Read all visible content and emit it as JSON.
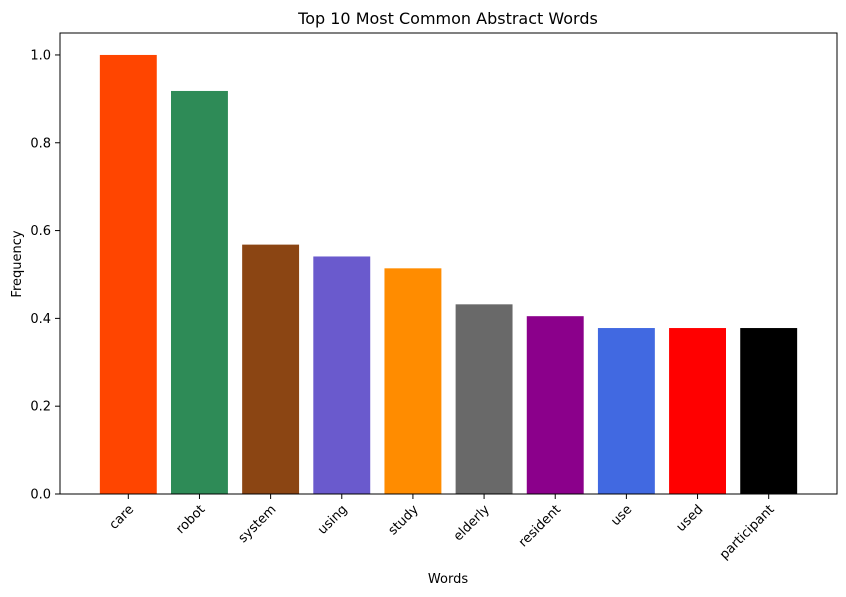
{
  "chart_data": {
    "type": "bar",
    "title": "Top 10 Most Common Abstract Words",
    "xlabel": "Words",
    "ylabel": "Frequency",
    "categories": [
      "care",
      "robot",
      "system",
      "using",
      "study",
      "elderly",
      "resident",
      "use",
      "used",
      "participant"
    ],
    "values": [
      1.0,
      0.918,
      0.568,
      0.541,
      0.514,
      0.432,
      0.405,
      0.378,
      0.378,
      0.378
    ],
    "colors": [
      "#ff4500",
      "#2e8b57",
      "#8b4513",
      "#6a5acd",
      "#ff8c00",
      "#696969",
      "#8b008b",
      "#4169e1",
      "#ff0000",
      "#000000"
    ],
    "ylim": [
      0,
      1.05
    ],
    "yticks": [
      0.0,
      0.2,
      0.4,
      0.6,
      0.8,
      1.0
    ],
    "ytick_labels": [
      "0.0",
      "0.2",
      "0.4",
      "0.6",
      "0.8",
      "1.0"
    ],
    "grid": false,
    "legend": "none"
  }
}
